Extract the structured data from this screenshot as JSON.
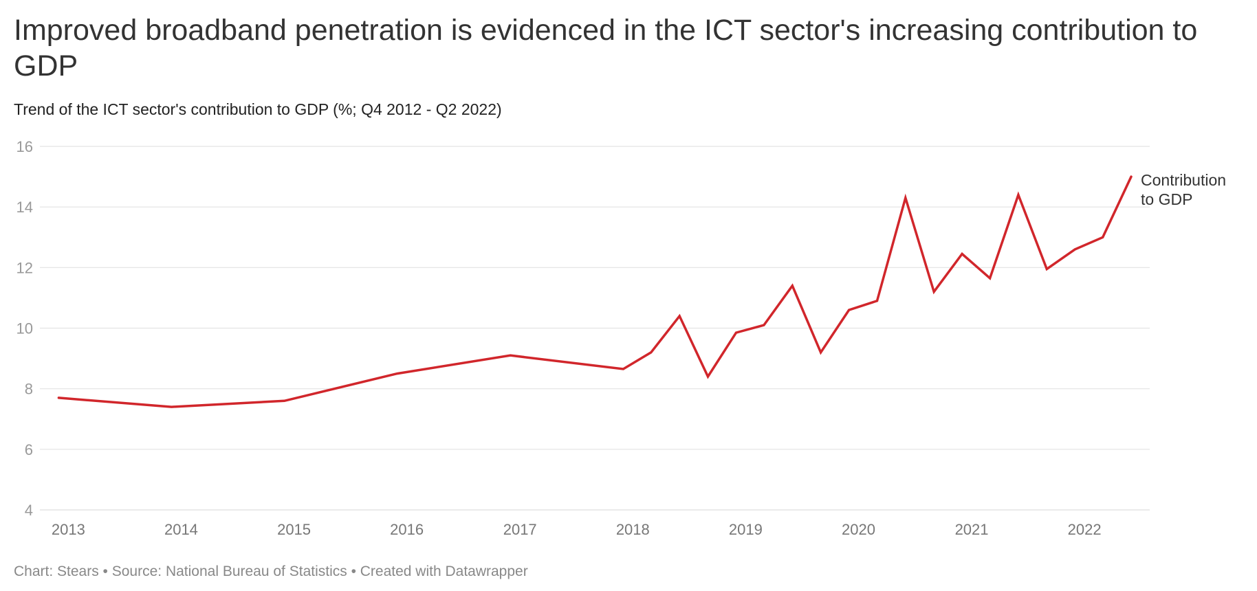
{
  "header": {
    "title": "Improved broadband penetration is evidenced in the ICT sector's increasing contribution to GDP",
    "subtitle": "Trend of the ICT sector's contribution to GDP (%; Q4 2012 - Q2 2022)"
  },
  "footer": {
    "text": "Chart: Stears • Source: National Bureau of Statistics • Created with Datawrapper"
  },
  "colors": {
    "line": "#d1262b",
    "grid": "#e3e3e3"
  },
  "chart_data": {
    "type": "line",
    "title": "Improved broadband penetration is evidenced in the ICT sector's increasing contribution to GDP",
    "subtitle": "Trend of the ICT sector's contribution to GDP (%; Q4 2012 - Q2 2022)",
    "xlabel": "",
    "ylabel": "",
    "ylim": [
      4,
      16
    ],
    "yticks": [
      4,
      6,
      8,
      10,
      12,
      14,
      16
    ],
    "xlim": [
      "2012-10-01",
      "2022-07-31"
    ],
    "xticks": [
      {
        "date": "2013-01-01",
        "label": "2013"
      },
      {
        "date": "2014-01-01",
        "label": "2014"
      },
      {
        "date": "2015-01-01",
        "label": "2015"
      },
      {
        "date": "2016-01-01",
        "label": "2016"
      },
      {
        "date": "2017-01-01",
        "label": "2017"
      },
      {
        "date": "2018-01-01",
        "label": "2018"
      },
      {
        "date": "2019-01-01",
        "label": "2019"
      },
      {
        "date": "2020-01-01",
        "label": "2020"
      },
      {
        "date": "2021-01-01",
        "label": "2021"
      },
      {
        "date": "2022-01-01",
        "label": "2022"
      }
    ],
    "grid": true,
    "legend": "inline-end-label",
    "series": [
      {
        "name": "Contribution to GDP",
        "label_lines": [
          "Contribution",
          "to GDP"
        ],
        "points": [
          {
            "x": "2012-12-01",
            "y": 7.7
          },
          {
            "x": "2013-12-01",
            "y": 7.4
          },
          {
            "x": "2014-12-01",
            "y": 7.6
          },
          {
            "x": "2015-12-01",
            "y": 8.5
          },
          {
            "x": "2016-12-01",
            "y": 9.1
          },
          {
            "x": "2017-12-01",
            "y": 8.65
          },
          {
            "x": "2018-03-01",
            "y": 9.2
          },
          {
            "x": "2018-06-01",
            "y": 10.4
          },
          {
            "x": "2018-09-01",
            "y": 8.4
          },
          {
            "x": "2018-12-01",
            "y": 9.85
          },
          {
            "x": "2019-03-01",
            "y": 10.1
          },
          {
            "x": "2019-06-01",
            "y": 11.4
          },
          {
            "x": "2019-09-01",
            "y": 9.2
          },
          {
            "x": "2019-12-01",
            "y": 10.6
          },
          {
            "x": "2020-03-01",
            "y": 10.9
          },
          {
            "x": "2020-06-01",
            "y": 14.3
          },
          {
            "x": "2020-09-01",
            "y": 11.2
          },
          {
            "x": "2020-12-01",
            "y": 12.45
          },
          {
            "x": "2021-03-01",
            "y": 11.65
          },
          {
            "x": "2021-06-01",
            "y": 14.4
          },
          {
            "x": "2021-09-01",
            "y": 11.95
          },
          {
            "x": "2021-12-01",
            "y": 12.6
          },
          {
            "x": "2022-03-01",
            "y": 13.0
          },
          {
            "x": "2022-06-01",
            "y": 15.0
          }
        ]
      }
    ]
  }
}
